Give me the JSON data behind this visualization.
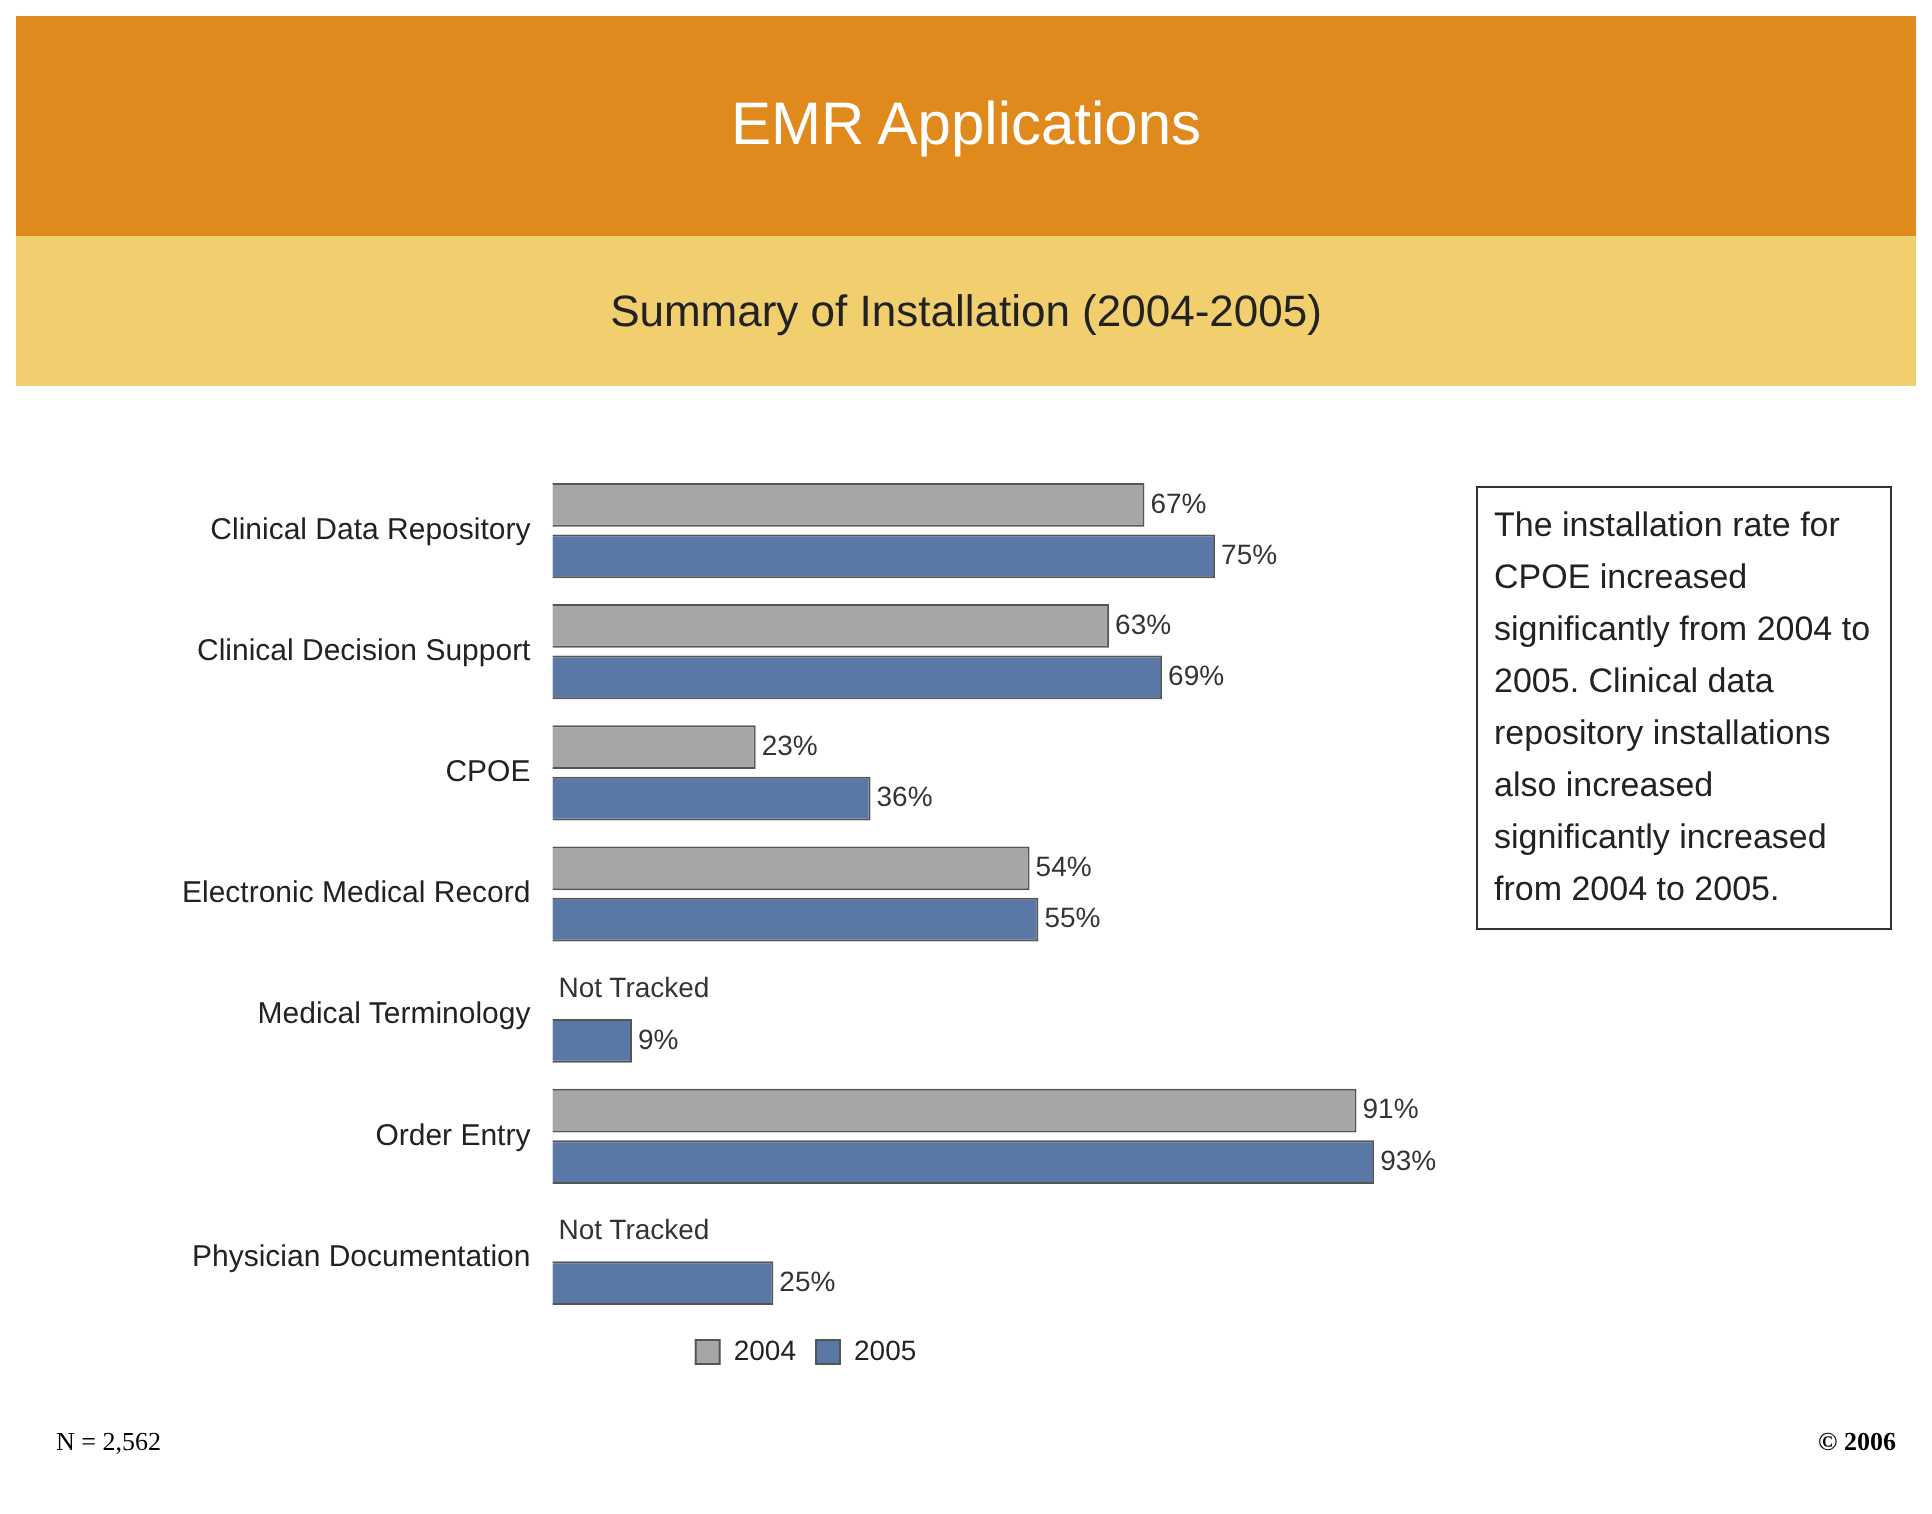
{
  "chart_data": {
    "type": "bar",
    "orientation": "horizontal",
    "title": "EMR Applications",
    "subtitle": "Summary of Installation (2004-2005)",
    "categories": [
      "Clinical Data Repository",
      "Clinical Decision Support",
      "CPOE",
      "Electronic Medical Record",
      "Medical Terminology",
      "Order Entry",
      "Physician Documentation"
    ],
    "series": [
      {
        "name": "2004",
        "color": "#a6a6a6",
        "values": [
          67,
          63,
          23,
          54,
          null,
          91,
          null
        ],
        "value_labels": [
          "67%",
          "63%",
          "23%",
          "54%",
          "Not Tracked",
          "91%",
          "Not Tracked"
        ]
      },
      {
        "name": "2005",
        "color": "#5a78a6",
        "values": [
          75,
          69,
          36,
          55,
          9,
          93,
          25
        ],
        "value_labels": [
          "75%",
          "69%",
          "36%",
          "55%",
          "9%",
          "93%",
          "25%"
        ]
      }
    ],
    "legend": "bottom",
    "annotations": [
      "The installation rate for CPOE increased significantly from 2004 to 2005. Clinical data repository installations also increased significantly increased from 2004 to 2005.",
      "N = 2,562",
      "© 2006"
    ]
  }
}
